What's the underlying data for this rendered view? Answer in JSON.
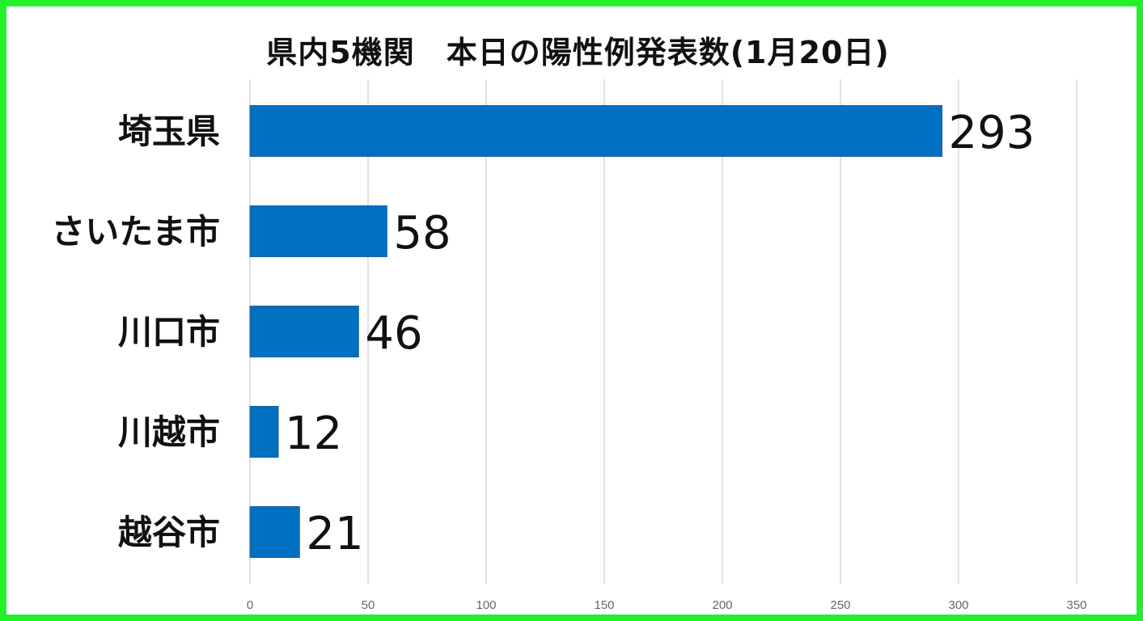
{
  "chart_data": {
    "type": "bar",
    "orientation": "horizontal",
    "title": "県内5機関　本日の陽性例発表数(1月20日)",
    "categories": [
      "埼玉県",
      "さいたま市",
      "川口市",
      "川越市",
      "越谷市"
    ],
    "values": [
      293,
      58,
      46,
      12,
      21
    ],
    "xlim": [
      0,
      350
    ],
    "ticks": [
      0,
      50,
      100,
      150,
      200,
      250,
      300,
      350
    ],
    "grid": true,
    "bar_color": "#0070c0",
    "border_color": "#22f02a"
  }
}
